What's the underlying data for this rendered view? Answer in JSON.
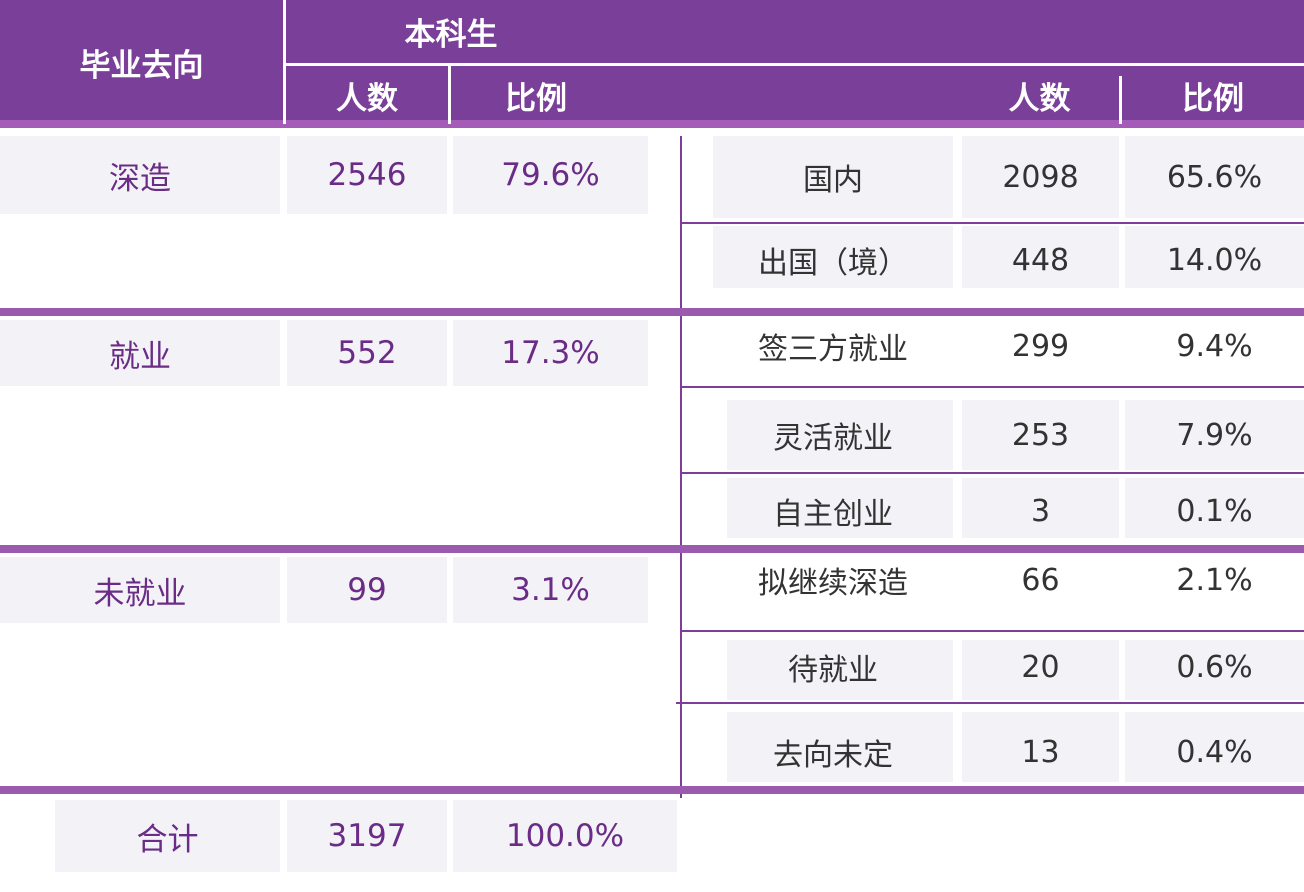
{
  "header": {
    "col_destination": "毕业去向",
    "group_undergrad": "本科生",
    "count": "人数",
    "ratio": "比例",
    "sub_count": "人数",
    "sub_ratio": "比例"
  },
  "categories": [
    {
      "name": "深造",
      "count": "2546",
      "ratio": "79.6%",
      "details": [
        {
          "name": "国内",
          "count": "2098",
          "ratio": "65.6%"
        },
        {
          "name": "出国（境）",
          "count": "448",
          "ratio": "14.0%"
        }
      ]
    },
    {
      "name": "就业",
      "count": "552",
      "ratio": "17.3%",
      "details": [
        {
          "name": "签三方就业",
          "count": "299",
          "ratio": "9.4%"
        },
        {
          "name": "灵活就业",
          "count": "253",
          "ratio": "7.9%"
        },
        {
          "name": "自主创业",
          "count": "3",
          "ratio": "0.1%"
        }
      ]
    },
    {
      "name": "未就业",
      "count": "99",
      "ratio": "3.1%",
      "details": [
        {
          "name": "拟继续深造",
          "count": "66",
          "ratio": "2.1%"
        },
        {
          "name": "待就业",
          "count": "20",
          "ratio": "0.6%"
        },
        {
          "name": "去向未定",
          "count": "13",
          "ratio": "0.4%"
        }
      ]
    }
  ],
  "total": {
    "label": "合计",
    "count": "3197",
    "ratio": "100.0%"
  }
}
